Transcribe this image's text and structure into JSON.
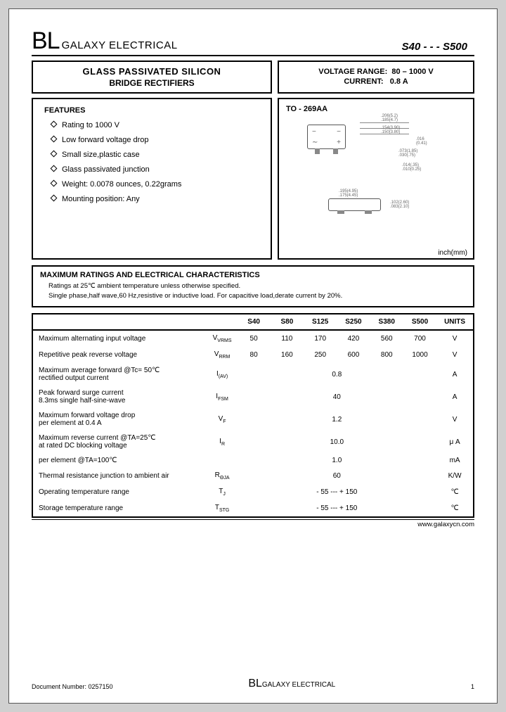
{
  "header": {
    "logo": "BL",
    "company": "GALAXY ELECTRICAL",
    "partno": "S40 - - - S500"
  },
  "title": {
    "line1": "GLASS  PASSIVATED  SILICON",
    "line2": "BRIDGE  RECTIFIERS"
  },
  "specs": {
    "voltage_label": "VOLTAGE RANGE:",
    "voltage_value": "80 – 1000 V",
    "current_label": "CURRENT:",
    "current_value": "0.8 A"
  },
  "features": {
    "heading": "FEATURES",
    "items": [
      "Rating to 1000 V",
      "Low forward voltage drop",
      "Small size,plastic case",
      "Glass  passivated  junction",
      "Weight: 0.0078 ounces, 0.22grams",
      "Mounting position: Any"
    ]
  },
  "package": {
    "heading": "TO - 269AA",
    "unit": "inch(mm)"
  },
  "ratings": {
    "heading": "MAXIMUM RATINGS AND ELECTRICAL CHARACTERISTICS",
    "note1": "Ratings at 25℃ ambient temperature unless otherwise specified.",
    "note2": "Single phase,half wave,60 Hz,resistive or inductive load. For capacitive load,derate current by 20%."
  },
  "table": {
    "columns": [
      "S40",
      "S80",
      "S125",
      "S250",
      "S380",
      "S500",
      "UNITS"
    ],
    "rows": [
      {
        "param": "Maximum alternating input  voltage",
        "sym": "V",
        "sub": "VRMS",
        "vals": [
          "50",
          "110",
          "170",
          "420",
          "560",
          "700"
        ],
        "unit": "V"
      },
      {
        "param": "Repetitive  peak reverse voltage",
        "sym": "V",
        "sub": "RRM",
        "vals": [
          "80",
          "160",
          "250",
          "600",
          "800",
          "1000"
        ],
        "unit": "V"
      },
      {
        "param": "Maximum average forward       @Tc= 50℃\n  rectified output current",
        "sym": "I",
        "sub": "(AV)",
        "span": "0.8",
        "unit": "A"
      },
      {
        "param": "Peak forward surge current\n   8.3ms single half-sine-wave",
        "sym": "I",
        "sub": "FSM",
        "span": "40",
        "unit": "A"
      },
      {
        "param": "Maximum forward voltage drop\n   per element at 0.4 A",
        "sym": "V",
        "sub": "F",
        "span": "1.2",
        "unit": "V"
      },
      {
        "param": "Maximum reverse current        @TA=25℃\n  at rated DC blocking voltage",
        "sym": "I",
        "sub": "R",
        "span": "10.0",
        "unit": "μ A"
      },
      {
        "param": "   per element                 @TA=100℃",
        "sym": "",
        "sub": "",
        "span": "1.0",
        "unit": "mA"
      },
      {
        "param": "Thermal resistance junction to ambient air",
        "sym": "R",
        "sub": "ΘJA",
        "span": "60",
        "unit": "K/W"
      },
      {
        "param": "Operating  temperature range",
        "sym": "T",
        "sub": "J",
        "span": "- 55 --- + 150",
        "unit": "℃"
      },
      {
        "param": "Storage temperature range",
        "sym": "T",
        "sub": "STG",
        "span": "- 55 --- + 150",
        "unit": "℃"
      }
    ]
  },
  "url": "www.galaxycn.com",
  "footer": {
    "docnum": "Document  Number: 0257150",
    "logo": "BL",
    "company": "GALAXY ELECTRICAL",
    "page": "1"
  }
}
